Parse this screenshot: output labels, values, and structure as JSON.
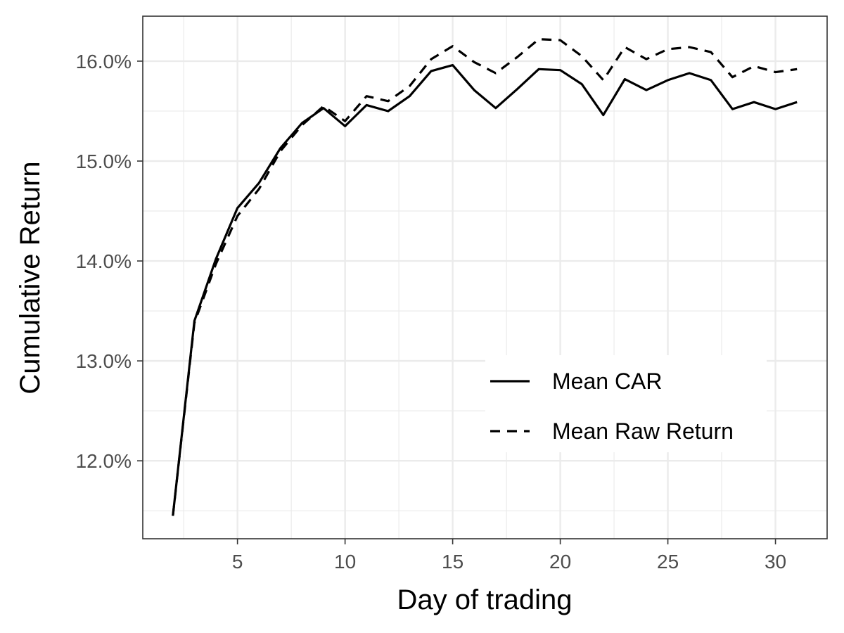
{
  "chart_data": {
    "type": "line",
    "title": "",
    "xlabel": "Day of trading",
    "ylabel": "Cumulative Return",
    "xlim": [
      0.6,
      32.4
    ],
    "ylim": [
      11.22,
      16.45
    ],
    "x_ticks": [
      5,
      10,
      15,
      20,
      25,
      30
    ],
    "x_tick_labels": [
      "5",
      "10",
      "15",
      "20",
      "25",
      "30"
    ],
    "y_ticks": [
      12.0,
      13.0,
      14.0,
      15.0,
      16.0
    ],
    "y_tick_labels": [
      "12.0%",
      "13.0%",
      "14.0%",
      "15.0%",
      "16.0%"
    ],
    "grid": true,
    "legend_position": "bottom-right inside",
    "x": [
      2,
      3,
      4,
      5,
      6,
      7,
      8,
      9,
      10,
      11,
      12,
      13,
      14,
      15,
      16,
      17,
      18,
      19,
      20,
      21,
      22,
      23,
      24,
      25,
      26,
      27,
      28,
      29,
      30,
      31
    ],
    "series": [
      {
        "name": "Mean CAR",
        "line_style": "solid",
        "color": "#000000",
        "values": [
          11.45,
          13.4,
          14.02,
          14.53,
          14.78,
          15.13,
          15.38,
          15.53,
          15.35,
          15.56,
          15.5,
          15.65,
          15.9,
          15.96,
          15.71,
          15.53,
          15.72,
          15.92,
          15.91,
          15.77,
          15.46,
          15.82,
          15.71,
          15.81,
          15.88,
          15.81,
          15.52,
          15.59,
          15.52,
          15.59
        ]
      },
      {
        "name": "Mean Raw Return",
        "line_style": "dashed",
        "color": "#000000",
        "values": [
          11.45,
          13.38,
          13.97,
          14.45,
          14.72,
          15.1,
          15.36,
          15.55,
          15.4,
          15.65,
          15.6,
          15.75,
          16.02,
          16.15,
          15.99,
          15.88,
          16.04,
          16.22,
          16.21,
          16.05,
          15.81,
          16.14,
          16.02,
          16.12,
          16.14,
          16.09,
          15.84,
          15.95,
          15.89,
          15.92
        ]
      }
    ]
  }
}
